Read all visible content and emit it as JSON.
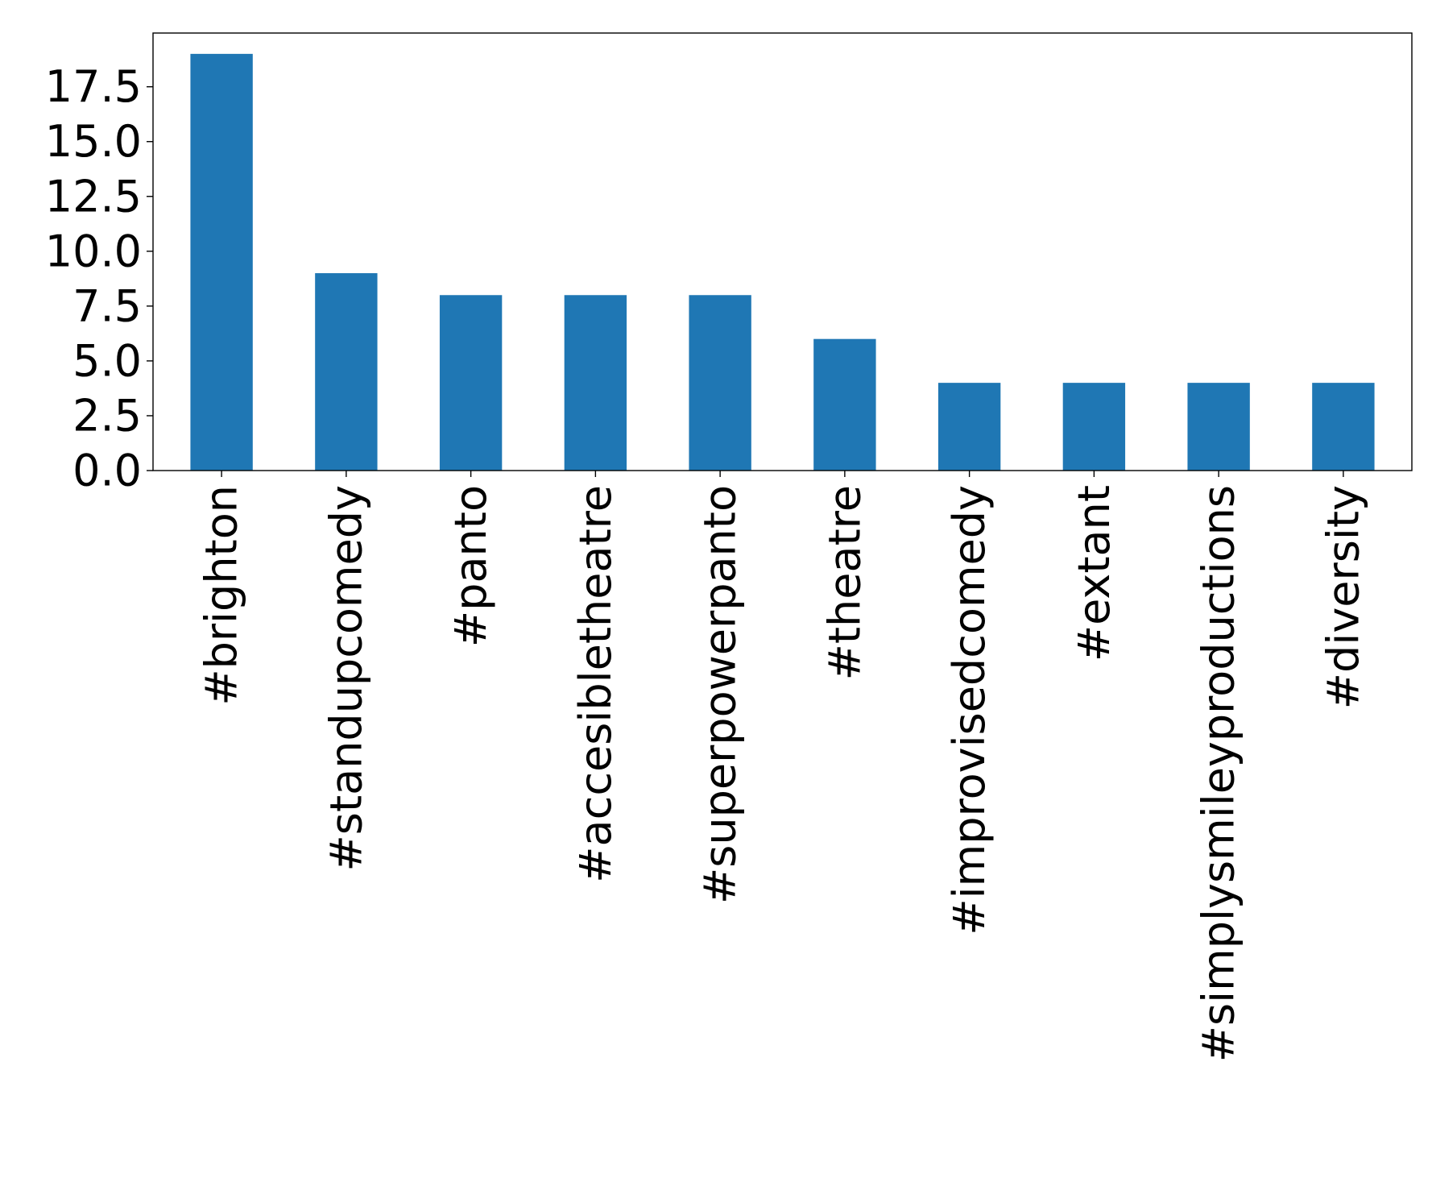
{
  "chart_data": {
    "type": "bar",
    "title": "",
    "xlabel": "",
    "ylabel": "",
    "categories": [
      "#brighton",
      "#standupcomedy",
      "#panto",
      "#accesibletheatre",
      "#superpowerpanto",
      "#theatre",
      "#improvisedcomedy",
      "#extant",
      "#simplysmileyproductions",
      "#diversity"
    ],
    "values": [
      19,
      9,
      8,
      8,
      8,
      6,
      4,
      4,
      4,
      4
    ],
    "ylim": [
      0,
      19.95
    ],
    "yticks": [
      0.0,
      2.5,
      5.0,
      7.5,
      10.0,
      12.5,
      15.0,
      17.5
    ],
    "ytick_labels": [
      "0.0",
      "2.5",
      "5.0",
      "7.5",
      "10.0",
      "12.5",
      "15.0",
      "17.5"
    ],
    "bar_color": "#1f77b4",
    "grid": false,
    "legend": "none"
  }
}
